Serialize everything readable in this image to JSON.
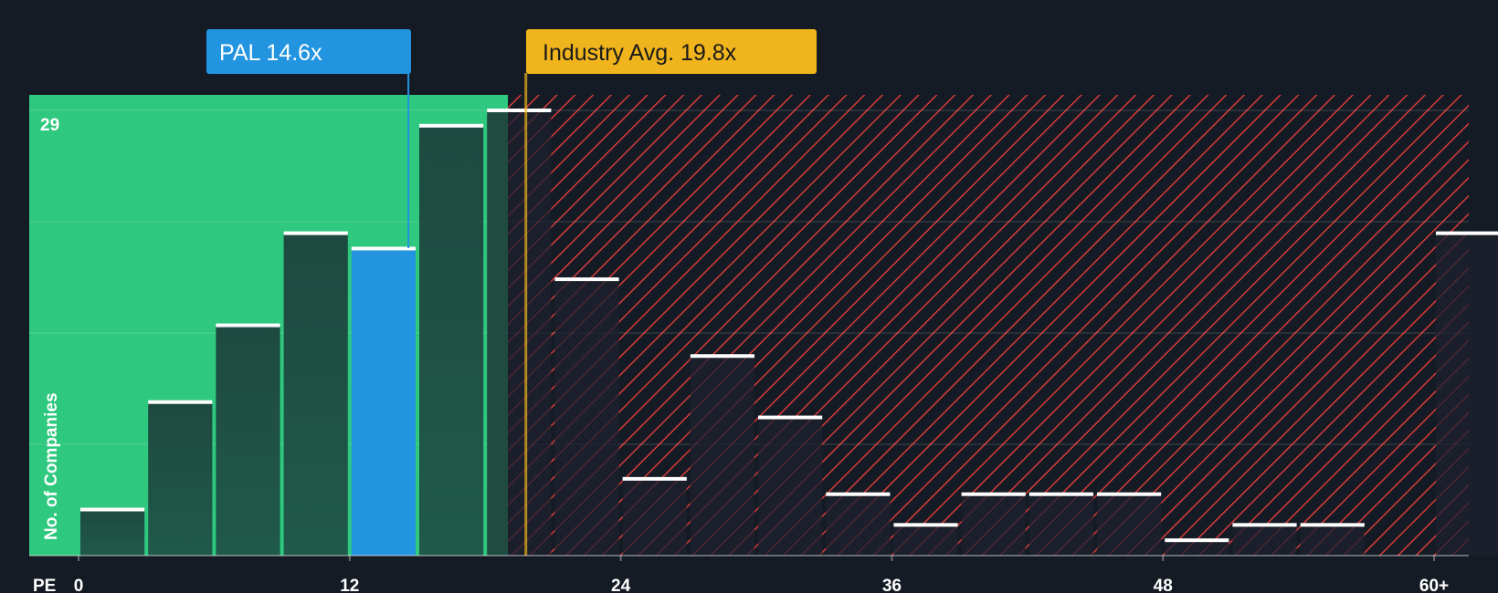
{
  "chart_data": {
    "type": "bar",
    "xlabel": "PE",
    "ylabel": "No. of Companies",
    "x_ticks": [
      "0",
      "12",
      "24",
      "36",
      "48",
      "60+"
    ],
    "y_max_label": "29",
    "ylim": [
      0,
      30
    ],
    "bin_width": 3,
    "bins": [
      {
        "x_start": 0,
        "value": 3
      },
      {
        "x_start": 3,
        "value": 10
      },
      {
        "x_start": 6,
        "value": 15
      },
      {
        "x_start": 9,
        "value": 21
      },
      {
        "x_start": 12,
        "value": 20,
        "highlight": true
      },
      {
        "x_start": 15,
        "value": 28
      },
      {
        "x_start": 18,
        "value": 29
      },
      {
        "x_start": 21,
        "value": 18
      },
      {
        "x_start": 24,
        "value": 5
      },
      {
        "x_start": 27,
        "value": 13
      },
      {
        "x_start": 30,
        "value": 9
      },
      {
        "x_start": 33,
        "value": 4
      },
      {
        "x_start": 36,
        "value": 2
      },
      {
        "x_start": 39,
        "value": 4
      },
      {
        "x_start": 42,
        "value": 4
      },
      {
        "x_start": 45,
        "value": 4
      },
      {
        "x_start": 48,
        "value": 1
      },
      {
        "x_start": 51,
        "value": 2
      },
      {
        "x_start": 54,
        "value": 2
      },
      {
        "x_start": 60,
        "value": 21
      }
    ],
    "markers": {
      "company": {
        "label": "PAL 14.6x",
        "value": 14.6,
        "color": "#2394e0"
      },
      "industry": {
        "label": "Industry Avg. 19.8x",
        "value": 19.8,
        "color": "#f0b41c"
      }
    },
    "colors": {
      "green_zone": "#2ec87e",
      "red_hatch": "#d83a3a",
      "bar_dark": "#1d4a40",
      "bar_red_zone": "#1d2430",
      "highlight_bar": "#2394e0",
      "background": "#151b24"
    }
  }
}
